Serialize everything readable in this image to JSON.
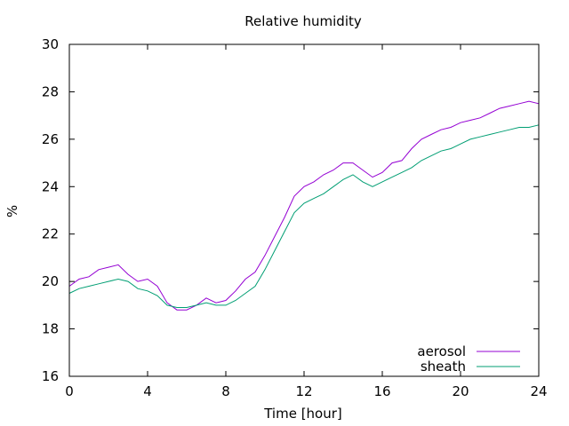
{
  "chart_data": {
    "type": "line",
    "title": "Relative humidity",
    "xlabel": "Time [hour]",
    "ylabel": "%",
    "xlim": [
      0,
      24
    ],
    "ylim": [
      16,
      30
    ],
    "xticks": [
      0,
      4,
      8,
      12,
      16,
      20,
      24
    ],
    "yticks": [
      16,
      18,
      20,
      22,
      24,
      26,
      28,
      30
    ],
    "grid": false,
    "legend_position": "bottom-right",
    "series": [
      {
        "name": "aerosol",
        "color": "#9400d3",
        "x": [
          0,
          0.5,
          1,
          1.5,
          2,
          2.5,
          3,
          3.5,
          4,
          4.5,
          5,
          5.5,
          6,
          6.5,
          7,
          7.5,
          8,
          8.5,
          9,
          9.5,
          10,
          10.5,
          11,
          11.5,
          12,
          12.5,
          13,
          13.5,
          14,
          14.5,
          15,
          15.5,
          16,
          16.5,
          17,
          17.5,
          18,
          18.5,
          19,
          19.5,
          20,
          20.5,
          21,
          21.5,
          22,
          22.5,
          23,
          23.5,
          24
        ],
        "y": [
          19.8,
          20.1,
          20.2,
          20.5,
          20.6,
          20.7,
          20.3,
          20.0,
          20.1,
          19.8,
          19.1,
          18.8,
          18.8,
          19.0,
          19.3,
          19.1,
          19.2,
          19.6,
          20.1,
          20.4,
          21.1,
          21.9,
          22.7,
          23.6,
          24.0,
          24.2,
          24.5,
          24.7,
          25.0,
          25.0,
          24.7,
          24.4,
          24.6,
          25.0,
          25.1,
          25.6,
          26.0,
          26.2,
          26.4,
          26.5,
          26.7,
          26.8,
          26.9,
          27.1,
          27.3,
          27.4,
          27.5,
          27.6,
          27.5
        ]
      },
      {
        "name": "sheath",
        "color": "#009e73",
        "x": [
          0,
          0.5,
          1,
          1.5,
          2,
          2.5,
          3,
          3.5,
          4,
          4.5,
          5,
          5.5,
          6,
          6.5,
          7,
          7.5,
          8,
          8.5,
          9,
          9.5,
          10,
          10.5,
          11,
          11.5,
          12,
          12.5,
          13,
          13.5,
          14,
          14.5,
          15,
          15.5,
          16,
          16.5,
          17,
          17.5,
          18,
          18.5,
          19,
          19.5,
          20,
          20.5,
          21,
          21.5,
          22,
          22.5,
          23,
          23.5,
          24
        ],
        "y": [
          19.5,
          19.7,
          19.8,
          19.9,
          20.0,
          20.1,
          20.0,
          19.7,
          19.6,
          19.4,
          19.0,
          18.9,
          18.9,
          19.0,
          19.1,
          19.0,
          19.0,
          19.2,
          19.5,
          19.8,
          20.5,
          21.3,
          22.1,
          22.9,
          23.3,
          23.5,
          23.7,
          24.0,
          24.3,
          24.5,
          24.2,
          24.0,
          24.2,
          24.4,
          24.6,
          24.8,
          25.1,
          25.3,
          25.5,
          25.6,
          25.8,
          26.0,
          26.1,
          26.2,
          26.3,
          26.4,
          26.5,
          26.5,
          26.6
        ]
      }
    ]
  }
}
